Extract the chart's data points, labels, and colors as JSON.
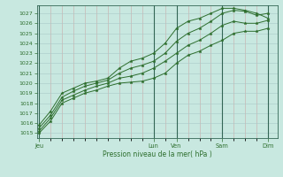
{
  "xlabel": "Pression niveau de la mer( hPa )",
  "ylim": [
    1014.5,
    1027.8
  ],
  "yticks": [
    1015,
    1016,
    1017,
    1018,
    1019,
    1020,
    1021,
    1022,
    1023,
    1024,
    1025,
    1026,
    1027
  ],
  "background_color": "#c8e8e0",
  "line_color": "#2d6e2d",
  "grid_minor_x_color": "#c8a8a8",
  "grid_major_y_color": "#a8c8c8",
  "vline_color": "#336655",
  "day_labels": [
    "Jeu",
    "Lun",
    "Ven",
    "Sam",
    "Dim"
  ],
  "day_positions": [
    0.0,
    5.0,
    6.0,
    8.0,
    10.0
  ],
  "xlim": [
    -0.1,
    10.4
  ],
  "series": [
    {
      "x": [
        0.0,
        0.5,
        1.0,
        1.5,
        2.0,
        2.5,
        3.0,
        3.5,
        4.0,
        4.5,
        5.0,
        5.5,
        6.0,
        6.5,
        7.0,
        7.5,
        8.0,
        8.5,
        9.0,
        9.5,
        10.0
      ],
      "y": [
        1015.0,
        1016.2,
        1018.0,
        1018.5,
        1019.0,
        1019.3,
        1019.7,
        1020.0,
        1020.1,
        1020.2,
        1020.5,
        1021.0,
        1022.0,
        1022.8,
        1023.2,
        1023.8,
        1024.3,
        1025.0,
        1025.2,
        1025.2,
        1025.5
      ]
    },
    {
      "x": [
        0.0,
        0.5,
        1.0,
        1.5,
        2.0,
        2.5,
        3.0,
        3.5,
        4.0,
        4.5,
        5.0,
        5.5,
        6.0,
        6.5,
        7.0,
        7.5,
        8.0,
        8.5,
        9.0,
        9.5,
        10.0
      ],
      "y": [
        1015.2,
        1016.5,
        1018.3,
        1018.8,
        1019.3,
        1019.7,
        1020.0,
        1020.5,
        1020.7,
        1021.0,
        1021.5,
        1022.2,
        1023.0,
        1023.8,
        1024.3,
        1025.0,
        1025.8,
        1026.2,
        1026.0,
        1026.0,
        1026.3
      ]
    },
    {
      "x": [
        0.0,
        0.5,
        1.0,
        1.5,
        2.0,
        2.5,
        3.0,
        3.5,
        4.0,
        4.5,
        5.0,
        5.5,
        6.0,
        6.5,
        7.0,
        7.5,
        8.0,
        8.5,
        9.0,
        9.5,
        10.0
      ],
      "y": [
        1015.5,
        1016.8,
        1018.6,
        1019.2,
        1019.7,
        1020.0,
        1020.3,
        1021.0,
        1021.5,
        1021.8,
        1022.2,
        1023.0,
        1024.2,
        1025.0,
        1025.5,
        1026.2,
        1027.0,
        1027.3,
        1027.2,
        1026.8,
        1027.0
      ]
    },
    {
      "x": [
        0.0,
        0.5,
        1.0,
        1.5,
        2.0,
        2.5,
        3.0,
        3.5,
        4.0,
        4.5,
        5.0,
        5.5,
        6.0,
        6.5,
        7.0,
        7.5,
        8.0,
        8.5,
        9.0,
        9.5,
        10.0
      ],
      "y": [
        1015.8,
        1017.2,
        1019.0,
        1019.5,
        1020.0,
        1020.2,
        1020.5,
        1021.5,
        1022.2,
        1022.5,
        1023.0,
        1024.0,
        1025.5,
        1026.2,
        1026.5,
        1027.0,
        1027.5,
        1027.5,
        1027.3,
        1027.0,
        1026.5
      ]
    }
  ]
}
